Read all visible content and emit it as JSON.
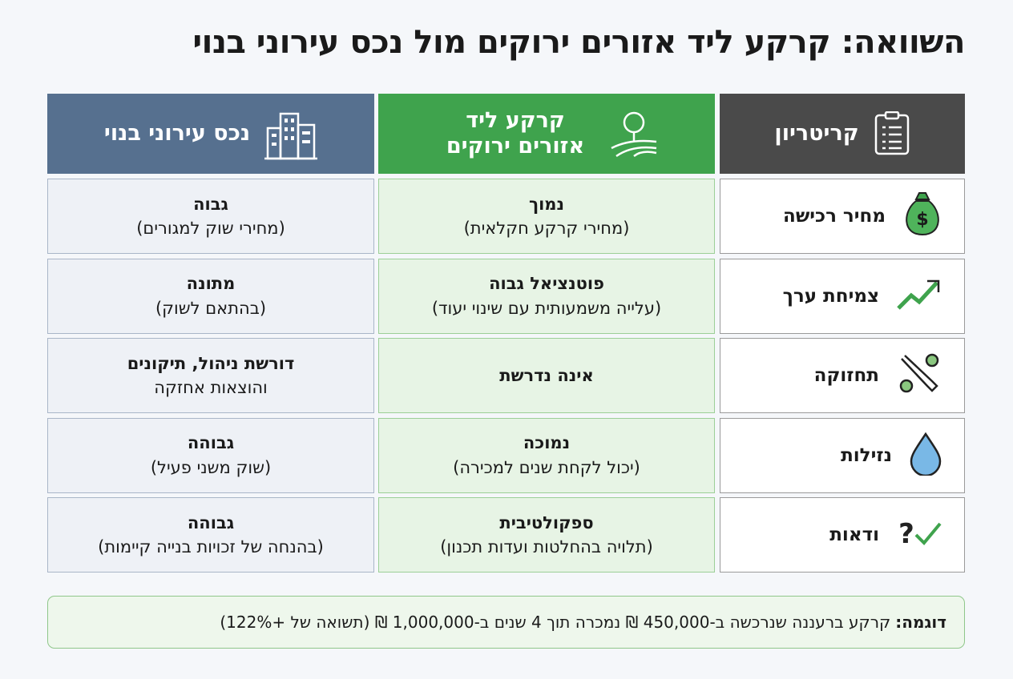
{
  "title": "השוואה: קרקע ליד אזורים ירוקים מול נכס עירוני בנוי",
  "header": {
    "criterion": "קריטריון",
    "land": "קרקע ליד אזורים ירוקים",
    "urban": "נכס עירוני בנוי"
  },
  "rows": [
    {
      "criterion": "מחיר רכישה",
      "land": {
        "main": "נמוך",
        "sub": "(מחירי קרקע חקלאית)"
      },
      "urban": {
        "main": "גבוה",
        "sub": "(מחירי שוק למגורים)"
      }
    },
    {
      "criterion": "צמיחת ערך",
      "land": {
        "main": "פוטנציאל גבוה",
        "sub": "(עלייה משמעותית עם שינוי יעוד)"
      },
      "urban": {
        "main": "מתונה",
        "sub": "(בהתאם לשוק)"
      }
    },
    {
      "criterion": "תחזוקה",
      "land": {
        "main": "אינה נדרשת"
      },
      "urban": {
        "main": "דורשת ניהול, תיקונים",
        "sub": "והוצאות אחזקה"
      }
    },
    {
      "criterion": "נזילות",
      "land": {
        "main": "נמוכה",
        "sub": "(יכול לקחת שנים למכירה)"
      },
      "urban": {
        "main": "גבוהה",
        "sub": "(שוק משני פעיל)"
      }
    },
    {
      "criterion": "ודאות",
      "land": {
        "main": "ספקולטיבית",
        "sub": "(תלויה בהחלטות ועדות תכנון)"
      },
      "urban": {
        "main": "גבוהה",
        "sub": "(בהנחה של זכויות בנייה קיימות)"
      }
    }
  ],
  "footer": {
    "label": "דוגמה:",
    "text": "קרקע ברעננה שנרכשה ב-450,000 ₪ נמכרה תוך 4 שנים ב-1,000,000 ₪ (תשואה של +122%)"
  }
}
